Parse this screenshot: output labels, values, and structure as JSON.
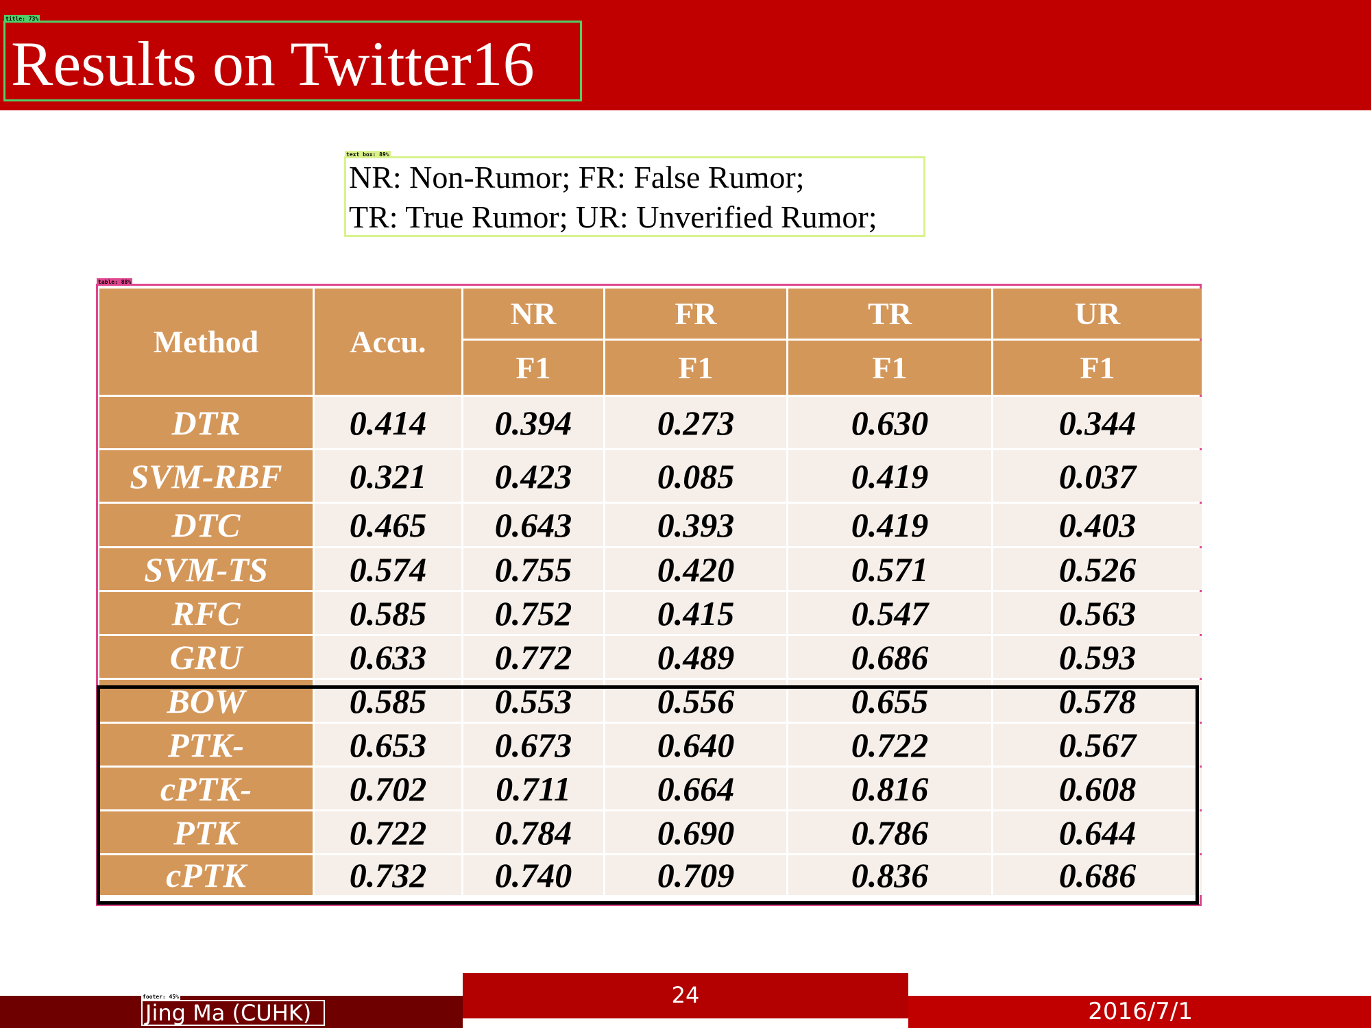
{
  "slide": {
    "title": "Results on Twitter16",
    "title_tag": "title: 73%"
  },
  "legend": {
    "tag": "text box: 89%",
    "line1": "NR: Non-Rumor; FR: False Rumor;",
    "line2": "TR: True Rumor; UR: Unverified Rumor;"
  },
  "table": {
    "tag": "table: 88%",
    "header": {
      "method": "Method",
      "accuracy": "Accu.",
      "classes": [
        "NR",
        "FR",
        "TR",
        "UR"
      ],
      "metric": "F1"
    },
    "rows": [
      {
        "method": "DTR",
        "values": [
          "0.414",
          "0.394",
          "0.273",
          "0.630",
          "0.344"
        ]
      },
      {
        "method": "SVM-RBF",
        "values": [
          "0.321",
          "0.423",
          "0.085",
          "0.419",
          "0.037"
        ]
      },
      {
        "method": "DTC",
        "values": [
          "0.465",
          "0.643",
          "0.393",
          "0.419",
          "0.403"
        ]
      },
      {
        "method": "SVM-TS",
        "values": [
          "0.574",
          "0.755",
          "0.420",
          "0.571",
          "0.526"
        ]
      },
      {
        "method": "RFC",
        "values": [
          "0.585",
          "0.752",
          "0.415",
          "0.547",
          "0.563"
        ]
      },
      {
        "method": "GRU",
        "values": [
          "0.633",
          "0.772",
          "0.489",
          "0.686",
          "0.593"
        ]
      },
      {
        "method": "BOW",
        "values": [
          "0.585",
          "0.553",
          "0.556",
          "0.655",
          "0.578"
        ]
      },
      {
        "method": "PTK-",
        "values": [
          "0.653",
          "0.673",
          "0.640",
          "0.722",
          "0.567"
        ]
      },
      {
        "method": "cPTK-",
        "values": [
          "0.702",
          "0.711",
          "0.664",
          "0.816",
          "0.608"
        ]
      },
      {
        "method": "PTK",
        "values": [
          "0.722",
          "0.784",
          "0.690",
          "0.786",
          "0.644"
        ]
      },
      {
        "method": "cPTK",
        "values": [
          "0.732",
          "0.740",
          "0.709",
          "0.836",
          "0.686"
        ]
      }
    ]
  },
  "footer": {
    "tag": "footer: 45%",
    "author": "Jing Ma (CUHK)",
    "page": "24",
    "date": "2016/7/1"
  },
  "colors": {
    "header_red": "#c00000",
    "table_header": "#d4975a",
    "table_cell": "#f5eee9"
  }
}
